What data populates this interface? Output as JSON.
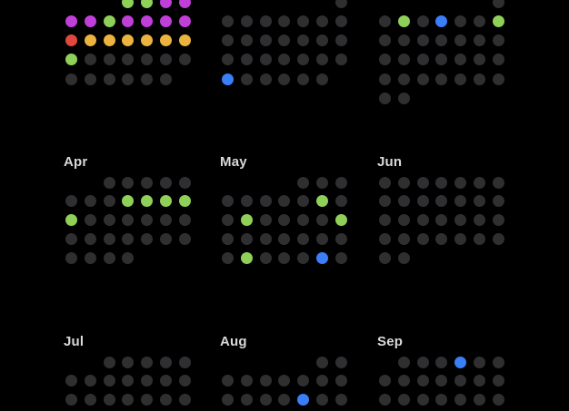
{
  "palette": {
    "gray": "#2f2f31",
    "green": "#8fd158",
    "blue": "#3a7ef8",
    "magenta": "#c13fd9",
    "red": "#e0483e",
    "yellow": "#ecb43e",
    "background": "#000000",
    "label_text": "#d9d9d9"
  },
  "calendar": {
    "columns_per_week": 7,
    "bands": [
      {
        "name": "top",
        "months": [
          {
            "label": "",
            "rows": [
              [
                null,
                null,
                null,
                "green",
                "green",
                "magenta",
                "magenta"
              ],
              [
                "magenta",
                "magenta",
                "green",
                "magenta",
                "magenta",
                "magenta",
                "magenta"
              ],
              [
                "red",
                "yellow",
                "yellow",
                "yellow",
                "yellow",
                "yellow",
                "yellow"
              ],
              [
                "green",
                "gray",
                "gray",
                "gray",
                "gray",
                "gray",
                "gray"
              ],
              [
                "gray",
                "gray",
                "gray",
                "gray",
                "gray",
                "gray",
                null
              ]
            ]
          },
          {
            "label": "",
            "rows": [
              [
                null,
                null,
                null,
                null,
                null,
                null,
                "gray"
              ],
              [
                "gray",
                "gray",
                "gray",
                "gray",
                "gray",
                "gray",
                "gray"
              ],
              [
                "gray",
                "gray",
                "gray",
                "gray",
                "gray",
                "gray",
                "gray"
              ],
              [
                "gray",
                "gray",
                "gray",
                "gray",
                "gray",
                "gray",
                "gray"
              ],
              [
                "blue",
                "gray",
                "gray",
                "gray",
                "gray",
                "gray",
                null
              ]
            ]
          },
          {
            "label": "",
            "rows": [
              [
                null,
                null,
                null,
                null,
                null,
                null,
                "gray"
              ],
              [
                "gray",
                "green",
                "gray",
                "blue",
                "gray",
                "gray",
                "green"
              ],
              [
                "gray",
                "gray",
                "gray",
                "gray",
                "gray",
                "gray",
                "gray"
              ],
              [
                "gray",
                "gray",
                "gray",
                "gray",
                "gray",
                "gray",
                "gray"
              ],
              [
                "gray",
                "gray",
                "gray",
                "gray",
                "gray",
                "gray",
                "gray"
              ],
              [
                "gray",
                "gray",
                null,
                null,
                null,
                null,
                null
              ]
            ]
          }
        ]
      },
      {
        "name": "middle",
        "months": [
          {
            "label": "Apr",
            "rows": [
              [
                null,
                null,
                "gray",
                "gray",
                "gray",
                "gray",
                "gray"
              ],
              [
                "gray",
                "gray",
                "gray",
                "green",
                "green",
                "green",
                "green"
              ],
              [
                "green",
                "gray",
                "gray",
                "gray",
                "gray",
                "gray",
                "gray"
              ],
              [
                "gray",
                "gray",
                "gray",
                "gray",
                "gray",
                "gray",
                "gray"
              ],
              [
                "gray",
                "gray",
                "gray",
                "gray",
                null,
                null,
                null
              ]
            ]
          },
          {
            "label": "May",
            "rows": [
              [
                null,
                null,
                null,
                null,
                "gray",
                "gray",
                "gray"
              ],
              [
                "gray",
                "gray",
                "gray",
                "gray",
                "gray",
                "green",
                "gray"
              ],
              [
                "gray",
                "green",
                "gray",
                "gray",
                "gray",
                "gray",
                "green"
              ],
              [
                "gray",
                "gray",
                "gray",
                "gray",
                "gray",
                "gray",
                "gray"
              ],
              [
                "gray",
                "green",
                "gray",
                "gray",
                "gray",
                "blue",
                "gray"
              ]
            ]
          },
          {
            "label": "Jun",
            "rows": [
              [
                "gray",
                "gray",
                "gray",
                "gray",
                "gray",
                "gray",
                "gray"
              ],
              [
                "gray",
                "gray",
                "gray",
                "gray",
                "gray",
                "gray",
                "gray"
              ],
              [
                "gray",
                "gray",
                "gray",
                "gray",
                "gray",
                "gray",
                "gray"
              ],
              [
                "gray",
                "gray",
                "gray",
                "gray",
                "gray",
                "gray",
                "gray"
              ],
              [
                "gray",
                "gray",
                null,
                null,
                null,
                null,
                null
              ]
            ]
          }
        ]
      },
      {
        "name": "bottom",
        "months": [
          {
            "label": "Jul",
            "rows": [
              [
                null,
                null,
                "gray",
                "gray",
                "gray",
                "gray",
                "gray"
              ],
              [
                "gray",
                "gray",
                "gray",
                "gray",
                "gray",
                "gray",
                "gray"
              ],
              [
                "gray",
                "gray",
                "gray",
                "gray",
                "gray",
                "gray",
                "gray"
              ]
            ]
          },
          {
            "label": "Aug",
            "rows": [
              [
                null,
                null,
                null,
                null,
                null,
                "gray",
                "gray"
              ],
              [
                "gray",
                "gray",
                "gray",
                "gray",
                "gray",
                "gray",
                "gray"
              ],
              [
                "gray",
                "gray",
                "gray",
                "gray",
                "blue",
                "gray",
                "gray"
              ]
            ]
          },
          {
            "label": "Sep",
            "rows": [
              [
                null,
                "gray",
                "gray",
                "gray",
                "blue",
                "gray",
                "gray"
              ],
              [
                "gray",
                "gray",
                "gray",
                "gray",
                "gray",
                "gray",
                "gray"
              ],
              [
                "gray",
                "gray",
                "gray",
                "gray",
                "gray",
                "gray",
                "gray"
              ]
            ]
          }
        ]
      }
    ]
  }
}
